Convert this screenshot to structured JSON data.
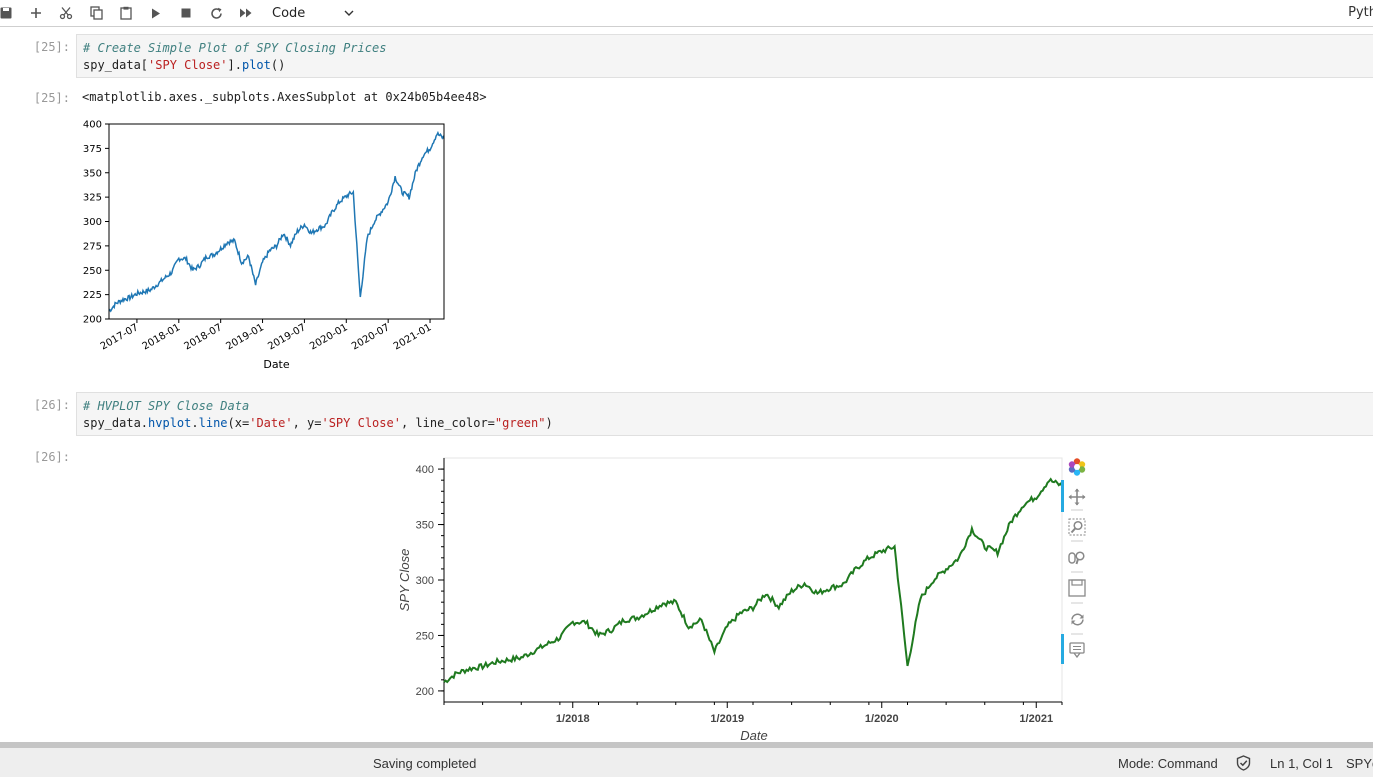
{
  "toolbar": {
    "kernel_select": "Code",
    "kernel_name": "Pyth"
  },
  "cells": [
    {
      "in_prompt": "[25]:",
      "comment": "# Create Simple Plot of SPY Closing Prices",
      "code": {
        "p1": "spy_data[",
        "s1": "'SPY Close'",
        "p2": "].",
        "fn": "plot",
        "p3": "()"
      },
      "out_prompt": "[25]:",
      "out_text": "<matplotlib.axes._subplots.AxesSubplot at 0x24b05b4ee48>"
    },
    {
      "in_prompt": "[26]:",
      "comment": "# HVPLOT SPY Close Data",
      "code": {
        "p1": "spy_data.",
        "fn": "hvplot",
        "p2": ".",
        "fn2": "line",
        "p3": "(x=",
        "s1": "'Date'",
        "p4": ", y=",
        "s2": "'SPY Close'",
        "p5": ", line_color=",
        "s3": "\"green\"",
        "p6": ")"
      },
      "out_prompt": "[26]:"
    }
  ],
  "chart_data": [
    {
      "type": "line",
      "library": "matplotlib",
      "color": "#1f77b4",
      "xlabel": "Date",
      "ylabel": "",
      "ylim": [
        200,
        400
      ],
      "xlim": [
        "2017-03",
        "2021-03"
      ],
      "yticks": [
        200,
        225,
        250,
        275,
        300,
        325,
        350,
        375,
        400
      ],
      "xticks": [
        "2017-07",
        "2018-01",
        "2018-07",
        "2019-01",
        "2019-07",
        "2020-01",
        "2020-07",
        "2021-01"
      ],
      "grid": false,
      "series": [
        {
          "x": [
            "2017-03",
            "2017-04",
            "2017-05",
            "2017-06",
            "2017-07",
            "2017-08",
            "2017-09",
            "2017-10",
            "2017-11",
            "2017-12",
            "2018-01",
            "2018-02",
            "2018-03",
            "2018-04",
            "2018-05",
            "2018-06",
            "2018-07",
            "2018-08",
            "2018-09",
            "2018-10",
            "2018-11",
            "2018-12",
            "2019-01",
            "2019-02",
            "2019-03",
            "2019-04",
            "2019-05",
            "2019-06",
            "2019-07",
            "2019-08",
            "2019-09",
            "2019-10",
            "2019-11",
            "2019-12",
            "2020-01",
            "2020-02",
            "2020-03",
            "2020-04",
            "2020-05",
            "2020-06",
            "2020-07",
            "2020-08",
            "2020-09",
            "2020-10",
            "2020-11",
            "2020-12",
            "2021-01",
            "2021-02",
            "2021-03"
          ],
          "values": [
            208,
            216,
            220,
            222,
            226,
            228,
            230,
            236,
            242,
            248,
            262,
            262,
            250,
            255,
            264,
            266,
            272,
            279,
            280,
            258,
            264,
            235,
            258,
            270,
            275,
            288,
            276,
            290,
            297,
            288,
            293,
            296,
            310,
            320,
            326,
            330,
            222,
            283,
            300,
            310,
            320,
            346,
            330,
            325,
            352,
            368,
            375,
            390,
            385
          ]
        }
      ]
    },
    {
      "type": "line",
      "library": "hvplot",
      "color": "#1f7a1f",
      "xlabel": "Date",
      "ylabel": "SPY Close",
      "ylim": [
        190,
        410
      ],
      "xlim": [
        "2017-03",
        "2021-03"
      ],
      "yticks": [
        200,
        250,
        300,
        350,
        400
      ],
      "xticks": [
        "1/2018",
        "1/2019",
        "1/2020",
        "1/2021"
      ],
      "grid": false,
      "series": [
        {
          "x": [
            "2017-03",
            "2017-04",
            "2017-05",
            "2017-06",
            "2017-07",
            "2017-08",
            "2017-09",
            "2017-10",
            "2017-11",
            "2017-12",
            "2018-01",
            "2018-02",
            "2018-03",
            "2018-04",
            "2018-05",
            "2018-06",
            "2018-07",
            "2018-08",
            "2018-09",
            "2018-10",
            "2018-11",
            "2018-12",
            "2019-01",
            "2019-02",
            "2019-03",
            "2019-04",
            "2019-05",
            "2019-06",
            "2019-07",
            "2019-08",
            "2019-09",
            "2019-10",
            "2019-11",
            "2019-12",
            "2020-01",
            "2020-02",
            "2020-03",
            "2020-04",
            "2020-05",
            "2020-06",
            "2020-07",
            "2020-08",
            "2020-09",
            "2020-10",
            "2020-11",
            "2020-12",
            "2021-01",
            "2021-02",
            "2021-03"
          ],
          "values": [
            208,
            216,
            220,
            222,
            226,
            228,
            230,
            236,
            242,
            248,
            262,
            262,
            250,
            255,
            264,
            266,
            272,
            279,
            280,
            258,
            264,
            235,
            258,
            270,
            275,
            288,
            276,
            290,
            297,
            288,
            293,
            296,
            310,
            320,
            326,
            330,
            222,
            283,
            300,
            310,
            320,
            346,
            330,
            325,
            352,
            368,
            375,
            390,
            385
          ]
        }
      ]
    }
  ],
  "status": {
    "saving": "Saving completed",
    "mode": "Mode: Command",
    "cursor": "Ln 1, Col 1",
    "file": "SPYdata"
  }
}
